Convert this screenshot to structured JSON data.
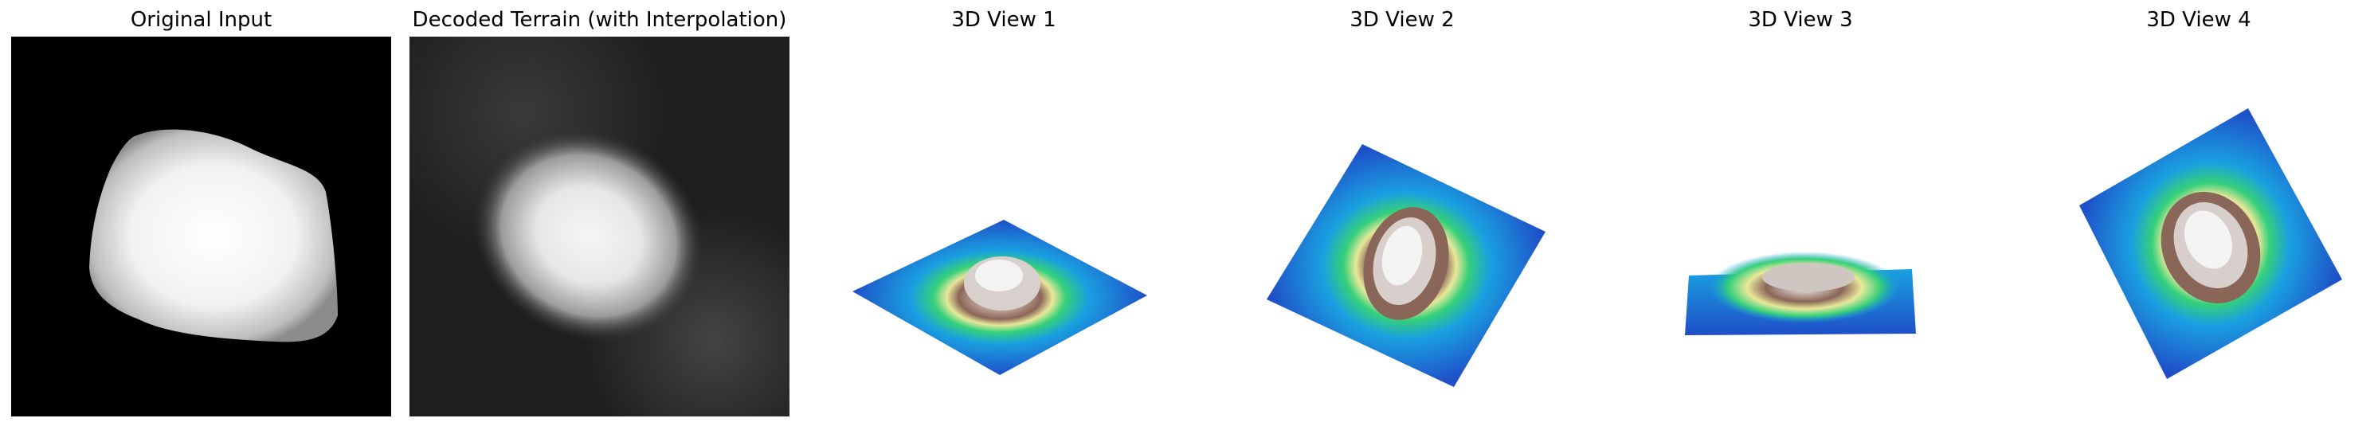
{
  "figure": {
    "panels": [
      {
        "title": "Original Input",
        "kind": "image",
        "colormap": "gray"
      },
      {
        "title": "Decoded Terrain (with Interpolation)",
        "kind": "image",
        "colormap": "gray"
      },
      {
        "title": "3D View 1",
        "kind": "surface",
        "colormap": "terrain"
      },
      {
        "title": "3D View 2",
        "kind": "surface",
        "colormap": "terrain"
      },
      {
        "title": "3D View 3",
        "kind": "surface",
        "colormap": "terrain"
      },
      {
        "title": "3D View 4",
        "kind": "surface",
        "colormap": "terrain"
      }
    ]
  },
  "colors": {
    "background": "#ffffff",
    "black": "#000000",
    "low": "#1f4fc8",
    "mid_low": "#1aa0e0",
    "mid": "#35d07a",
    "yellow": "#e9e89a",
    "brown": "#8a6658",
    "peak": "#f4f4f4"
  }
}
